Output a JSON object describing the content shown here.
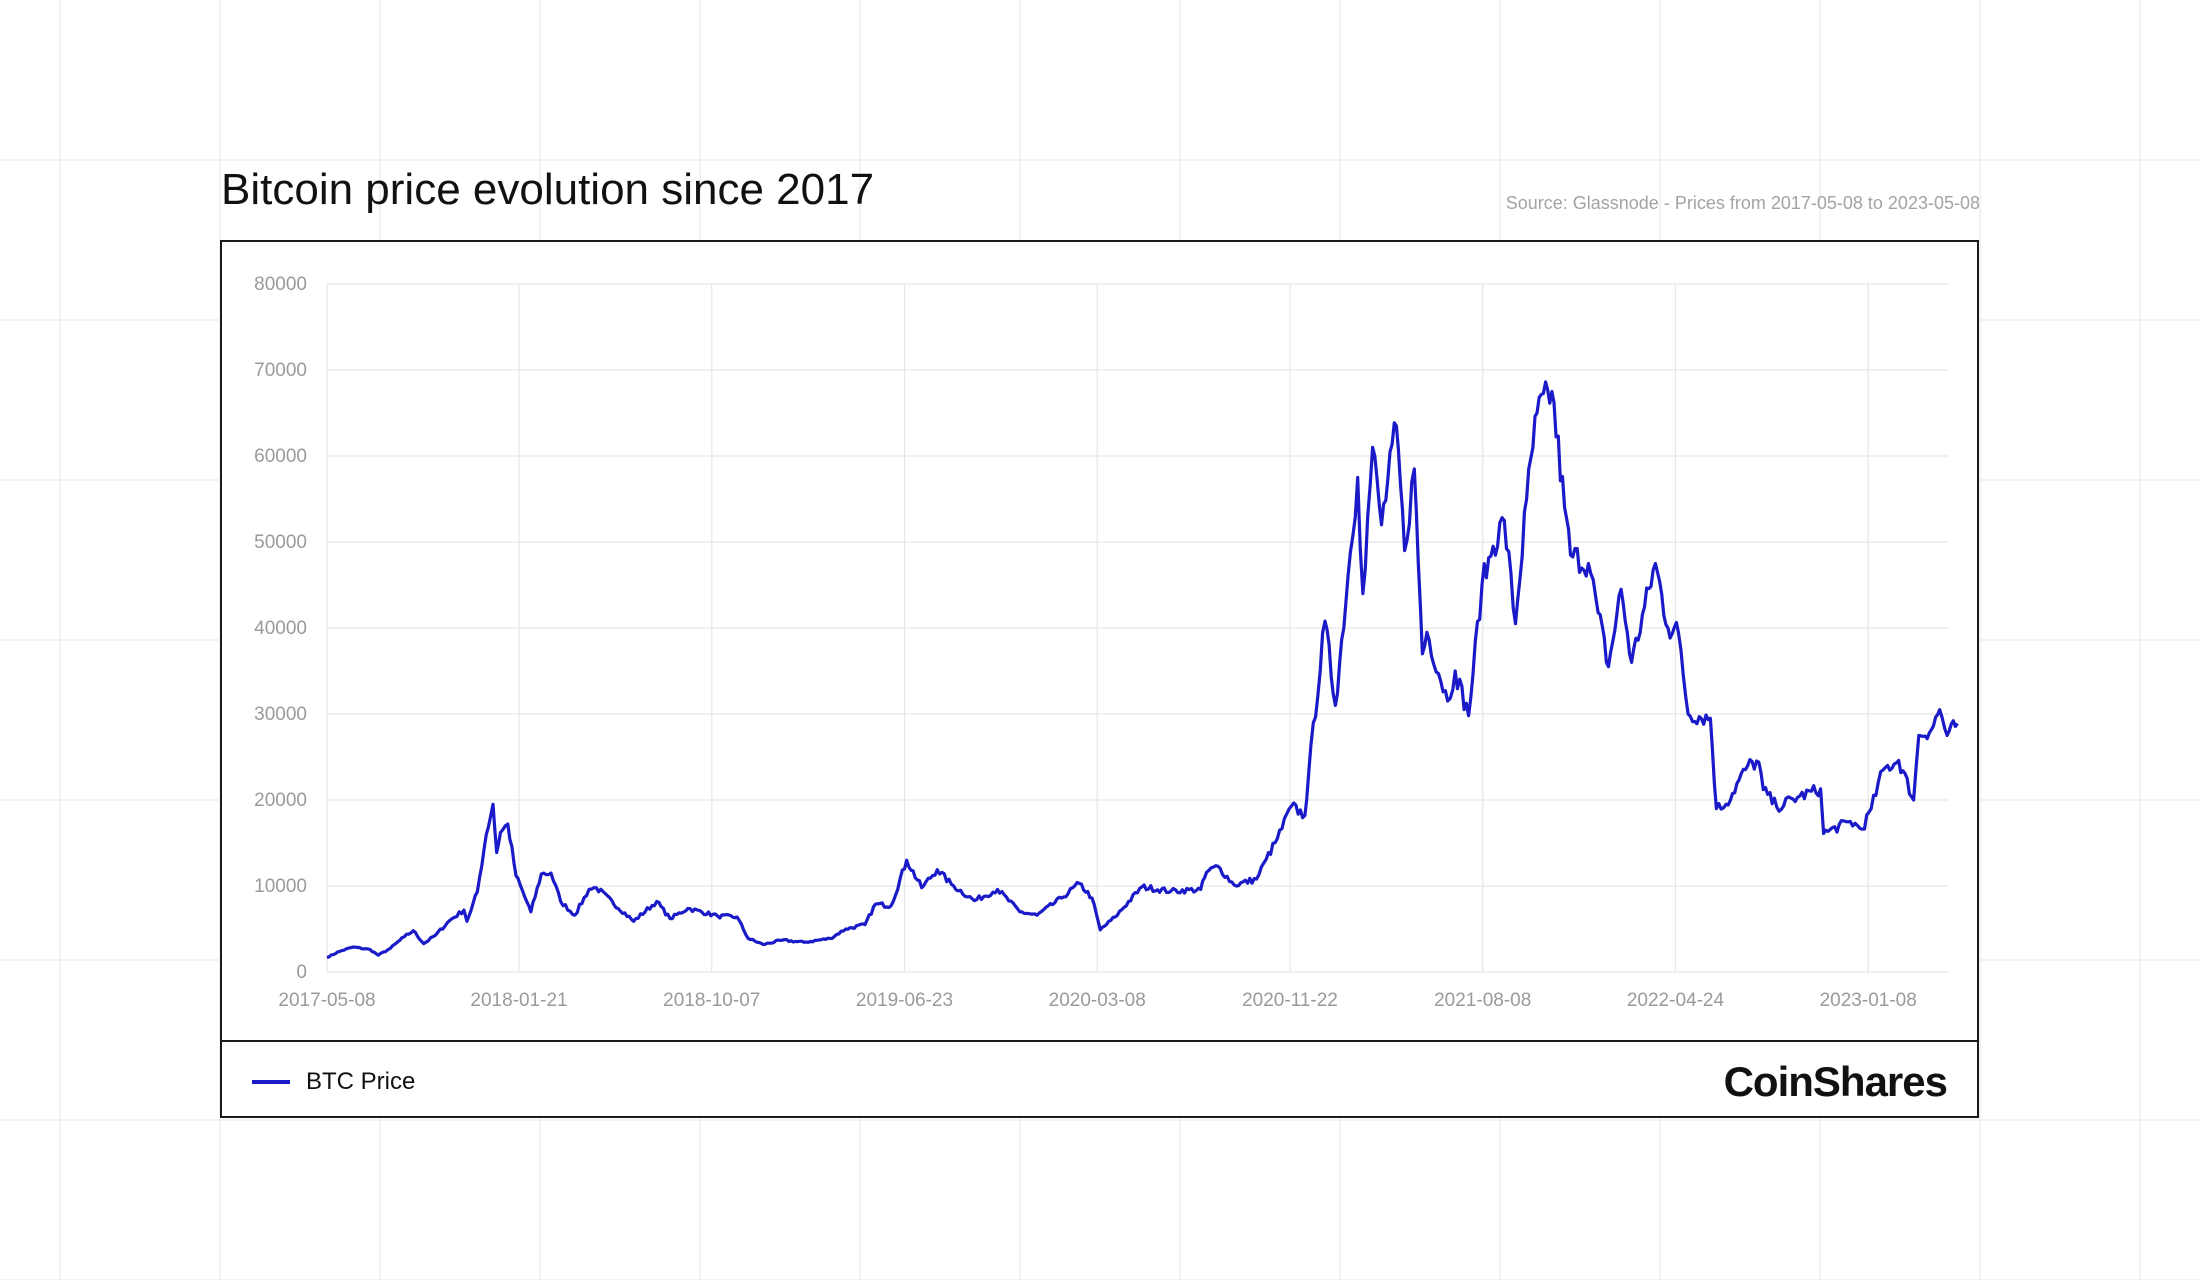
{
  "title": "Bitcoin price evolution since 2017",
  "source": "Source: Glassnode -  Prices from 2017-05-08 to 2023-05-08",
  "brand": "CoinShares",
  "colors": {
    "series": "#1a1ac8",
    "grid": "#e6e6e6",
    "frame": "#1a1a1a"
  },
  "chart_data": {
    "type": "line",
    "title": "Bitcoin price evolution since 2017",
    "xlabel": "",
    "ylabel": "",
    "x_range": [
      "2017-05-08",
      "2023-05-08"
    ],
    "ylim": [
      0,
      80000
    ],
    "yticks": [
      0,
      10000,
      20000,
      30000,
      40000,
      50000,
      60000,
      70000,
      80000
    ],
    "xticks": [
      "2017-05-08",
      "2018-01-21",
      "2018-10-07",
      "2019-06-23",
      "2020-03-08",
      "2020-11-22",
      "2021-08-08",
      "2022-04-24",
      "2023-01-08"
    ],
    "grid": true,
    "legend_position": "bottom-left",
    "series": [
      {
        "name": "BTC Price",
        "color": "#1a1ac8",
        "points": [
          [
            "2017-05-08",
            1700
          ],
          [
            "2017-05-25",
            2400
          ],
          [
            "2017-06-12",
            2900
          ],
          [
            "2017-07-05",
            2600
          ],
          [
            "2017-07-16",
            1950
          ],
          [
            "2017-08-01",
            2750
          ],
          [
            "2017-08-20",
            4100
          ],
          [
            "2017-09-01",
            4800
          ],
          [
            "2017-09-15",
            3300
          ],
          [
            "2017-10-01",
            4300
          ],
          [
            "2017-10-20",
            6000
          ],
          [
            "2017-11-08",
            7200
          ],
          [
            "2017-11-12",
            5900
          ],
          [
            "2017-11-26",
            9300
          ],
          [
            "2017-12-08",
            16000
          ],
          [
            "2017-12-17",
            19500
          ],
          [
            "2017-12-22",
            13900
          ],
          [
            "2017-12-27",
            16200
          ],
          [
            "2018-01-06",
            17200
          ],
          [
            "2018-01-17",
            11200
          ],
          [
            "2018-02-06",
            7000
          ],
          [
            "2018-02-20",
            11400
          ],
          [
            "2018-03-05",
            11500
          ],
          [
            "2018-03-18",
            8200
          ],
          [
            "2018-04-06",
            6600
          ],
          [
            "2018-04-25",
            9600
          ],
          [
            "2018-05-05",
            9800
          ],
          [
            "2018-06-24",
            5900
          ],
          [
            "2018-07-25",
            8200
          ],
          [
            "2018-08-12",
            6200
          ],
          [
            "2018-09-05",
            7400
          ],
          [
            "2018-10-15",
            6500
          ],
          [
            "2018-11-10",
            6400
          ],
          [
            "2018-11-25",
            3900
          ],
          [
            "2018-12-15",
            3200
          ],
          [
            "2019-01-10",
            3700
          ],
          [
            "2019-02-08",
            3450
          ],
          [
            "2019-03-15",
            3900
          ],
          [
            "2019-04-05",
            5000
          ],
          [
            "2019-05-01",
            5500
          ],
          [
            "2019-05-15",
            7900
          ],
          [
            "2019-06-05",
            7700
          ],
          [
            "2019-06-26",
            13000
          ],
          [
            "2019-07-16",
            9800
          ],
          [
            "2019-08-06",
            11900
          ],
          [
            "2019-08-25",
            10200
          ],
          [
            "2019-09-25",
            8300
          ],
          [
            "2019-10-26",
            9600
          ],
          [
            "2019-11-25",
            7000
          ],
          [
            "2019-12-18",
            6600
          ],
          [
            "2020-01-20",
            8600
          ],
          [
            "2020-02-13",
            10300
          ],
          [
            "2020-03-01",
            8600
          ],
          [
            "2020-03-12",
            4900
          ],
          [
            "2020-04-01",
            6400
          ],
          [
            "2020-05-07",
            9900
          ],
          [
            "2020-06-15",
            9400
          ],
          [
            "2020-07-25",
            9600
          ],
          [
            "2020-08-02",
            11600
          ],
          [
            "2020-08-17",
            12300
          ],
          [
            "2020-09-08",
            10100
          ],
          [
            "2020-10-08",
            10800
          ],
          [
            "2020-10-21",
            13100
          ],
          [
            "2020-11-05",
            15500
          ],
          [
            "2020-11-24",
            19300
          ],
          [
            "2020-12-12",
            18200
          ],
          [
            "2020-12-17",
            23000
          ],
          [
            "2021-01-08",
            40800
          ],
          [
            "2021-01-22",
            31000
          ],
          [
            "2021-02-08",
            46000
          ],
          [
            "2021-02-21",
            57500
          ],
          [
            "2021-02-28",
            44000
          ],
          [
            "2021-03-13",
            61000
          ],
          [
            "2021-03-25",
            52000
          ],
          [
            "2021-04-14",
            63500
          ],
          [
            "2021-04-25",
            49000
          ],
          [
            "2021-05-08",
            58500
          ],
          [
            "2021-05-19",
            37000
          ],
          [
            "2021-05-25",
            39500
          ],
          [
            "2021-06-22",
            31500
          ],
          [
            "2021-07-02",
            35000
          ],
          [
            "2021-07-20",
            29800
          ],
          [
            "2021-08-07",
            45000
          ],
          [
            "2021-08-22",
            49500
          ],
          [
            "2021-09-06",
            52500
          ],
          [
            "2021-09-21",
            40500
          ],
          [
            "2021-10-06",
            55000
          ],
          [
            "2021-10-20",
            65000
          ],
          [
            "2021-11-09",
            67500
          ],
          [
            "2021-11-26",
            54000
          ],
          [
            "2021-12-04",
            48500
          ],
          [
            "2021-12-28",
            47500
          ],
          [
            "2022-01-10",
            41800
          ],
          [
            "2022-01-24",
            35500
          ],
          [
            "2022-02-10",
            44500
          ],
          [
            "2022-02-24",
            36000
          ],
          [
            "2022-03-28",
            47500
          ],
          [
            "2022-04-14",
            40000
          ],
          [
            "2022-04-28",
            39500
          ],
          [
            "2022-05-11",
            30000
          ],
          [
            "2022-06-10",
            29500
          ],
          [
            "2022-06-18",
            19000
          ],
          [
            "2022-07-01",
            19500
          ],
          [
            "2022-07-30",
            24000
          ],
          [
            "2022-08-14",
            24400
          ],
          [
            "2022-08-20",
            21200
          ],
          [
            "2022-09-07",
            19200
          ],
          [
            "2022-10-05",
            20300
          ],
          [
            "2022-11-05",
            21300
          ],
          [
            "2022-11-09",
            16100
          ],
          [
            "2022-12-15",
            17500
          ],
          [
            "2022-12-31",
            16600
          ],
          [
            "2023-01-12",
            19000
          ],
          [
            "2023-01-28",
            23500
          ],
          [
            "2023-02-18",
            24600
          ],
          [
            "2023-03-10",
            20000
          ],
          [
            "2023-03-17",
            27500
          ],
          [
            "2023-04-03",
            28200
          ],
          [
            "2023-04-14",
            30500
          ],
          [
            "2023-04-24",
            27500
          ],
          [
            "2023-05-08",
            28900
          ]
        ]
      }
    ]
  }
}
